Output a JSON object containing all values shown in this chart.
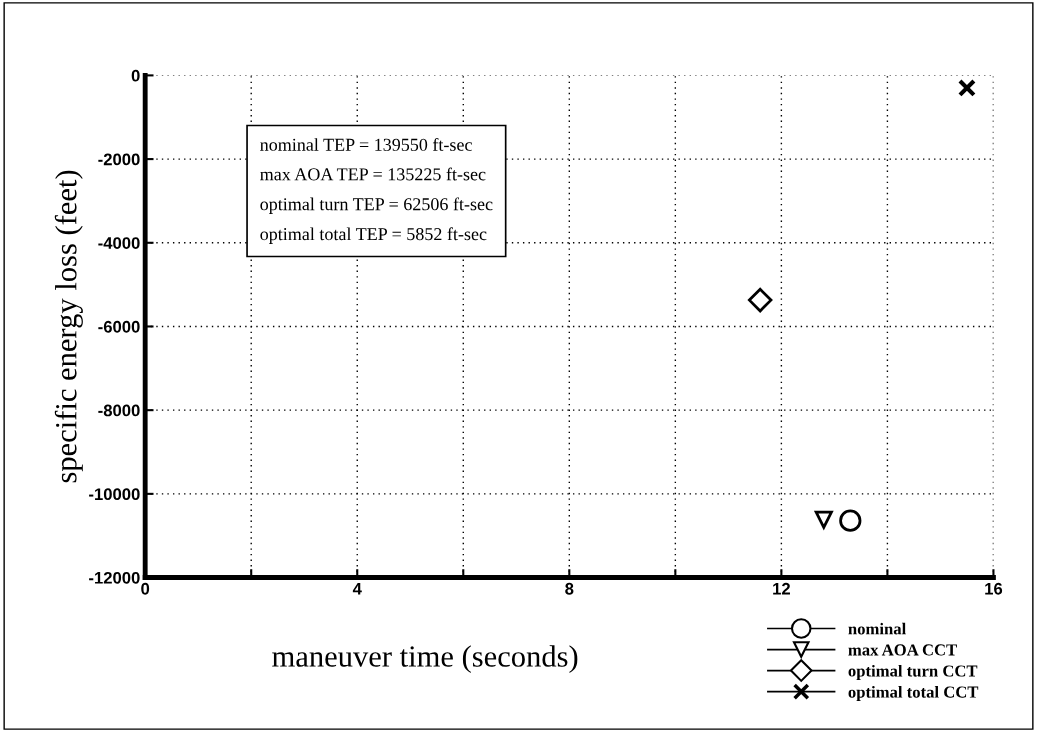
{
  "chart_data": {
    "type": "scatter",
    "xlabel": "maneuver time (seconds)",
    "ylabel": "specific energy loss (feet)",
    "xlim": [
      0,
      16
    ],
    "ylim": [
      -12000,
      0
    ],
    "xticks": [
      0,
      {
        "value": 2,
        "label": null
      },
      4,
      {
        "value": 6,
        "label": null
      },
      8,
      {
        "value": 10,
        "label": null
      },
      12,
      {
        "value": 14,
        "label": null
      },
      16
    ],
    "yticks": [
      -12000,
      -10000,
      -8000,
      -6000,
      -4000,
      -2000,
      0
    ],
    "grid": true,
    "legend": "bottom right",
    "series": [
      {
        "name": "nominal",
        "color": "#000000",
        "marker": "circle",
        "x": [
          13.3
        ],
        "values": [
          -10640
        ]
      },
      {
        "name": "max AOA CCT",
        "color": "#000000",
        "marker": "triangle",
        "x": [
          12.8
        ],
        "values": [
          -10620
        ]
      },
      {
        "name": "optimal turn CCT",
        "color": "#000000",
        "marker": "diamond",
        "x": [
          11.6
        ],
        "values": [
          -5370
        ]
      },
      {
        "name": "optimal total CCT",
        "color": "#000000",
        "marker": "cross",
        "x": [
          15.5
        ],
        "values": [
          -300
        ]
      }
    ],
    "annotations": [
      "nominal TEP = 139550 ft-sec",
      "max AOA TEP = 135225 ft-sec",
      "optimal turn TEP = 62506 ft-sec",
      "optimal total TEP = 5852 ft-sec"
    ]
  }
}
